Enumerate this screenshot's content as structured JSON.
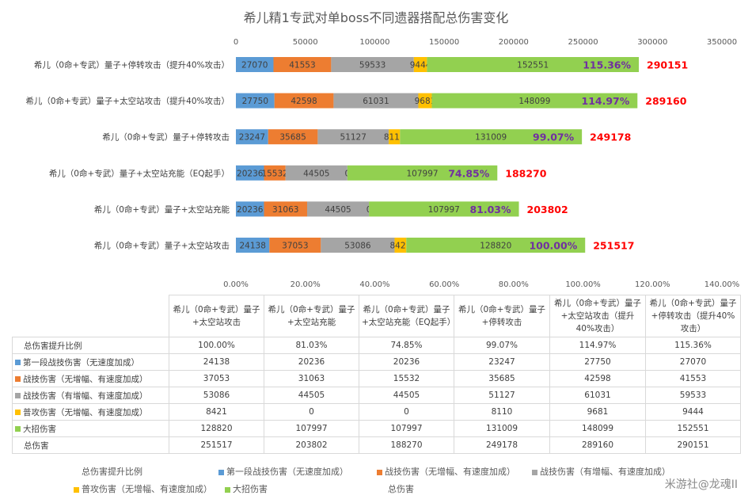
{
  "chart_data": {
    "type": "bar",
    "orientation": "horizontal",
    "stacked": true,
    "title": "希儿精1专武对单boss不同遗器搭配总伤害变化",
    "categories": [
      "希儿（0命+专武）量子+太空站攻击",
      "希儿（0命+专武）量子+太空站充能",
      "希儿（0命+专武）量子+太空站充能（EQ起手）",
      "希儿（0命+专武）量子+停转攻击",
      "希儿（0命+专武）量子+太空站攻击（提升40%攻击）",
      "希儿（0命+专武）量子+停转攻击（提升40%攻击）"
    ],
    "chart_categories": [
      "希儿（0命+专武）量子+太空站攻击",
      "希儿（0命+专武）量子+太空站充能",
      "希儿（0命+专武）量子+太空站充能（EQ起手）",
      "希儿（0命+专武）量子+停转攻击",
      "希儿（0命+专武）量子+太空站攻击（提升40%攻击）",
      "希儿（0命+专武）量子+停转攻击（提升40%攻击）"
    ],
    "table_headers": [
      "希儿（0命+专武）量子+太空站攻击",
      "希儿（0命+专武）量子+太空站充能",
      "希儿（0命+专武）量子+太空站充能（EQ起手）",
      "希儿（0命+专武）量子+停转攻击",
      "希儿（0命+专武）量子+太空站攻击（提升40%攻击）",
      "希儿（0命+专武）量子+停转攻击（提升40%攻击）"
    ],
    "series": [
      {
        "name": "第一段战技伤害（无速度加成）",
        "color": "#5b9bd5",
        "values": [
          24138,
          20236,
          20236,
          23247,
          27750,
          27070
        ]
      },
      {
        "name": "战技伤害（无增幅、有速度加成）",
        "color": "#ed7d31",
        "values": [
          37053,
          31063,
          15532,
          35685,
          42598,
          41553
        ]
      },
      {
        "name": "战技伤害（有增幅、有速度加成）",
        "color": "#a5a5a5",
        "values": [
          53086,
          44505,
          44505,
          51127,
          61031,
          59533
        ]
      },
      {
        "name": "普攻伤害（无增幅、有速度加成）",
        "color": "#ffc000",
        "values": [
          8421,
          0,
          0,
          8110,
          9681,
          9444
        ]
      },
      {
        "name": "大招伤害",
        "color": "#92d050",
        "values": [
          128820,
          107997,
          107997,
          131009,
          148099,
          152551
        ]
      }
    ],
    "ratio_series": {
      "name": "总伤害提升比例",
      "values": [
        "100.00%",
        "81.03%",
        "74.85%",
        "99.07%",
        "114.97%",
        "115.36%"
      ]
    },
    "total_series": {
      "name": "总伤害",
      "values": [
        251517,
        203802,
        188270,
        249178,
        289160,
        290151
      ]
    },
    "top_axis": {
      "min": 0,
      "max": 350000,
      "ticks": [
        "0",
        "50000",
        "100000",
        "150000",
        "200000",
        "250000",
        "300000",
        "350000"
      ]
    },
    "bottom_axis": {
      "min": 0,
      "max": 1.4,
      "ticks": [
        "0.00%",
        "20.00%",
        "40.00%",
        "60.00%",
        "80.00%",
        "100.00%",
        "120.00%",
        "140.00%"
      ]
    },
    "colors": {
      "ratio_label": "#7030a0",
      "total_label": "#ff0000"
    }
  },
  "watermark": "米游社@龙魂II"
}
